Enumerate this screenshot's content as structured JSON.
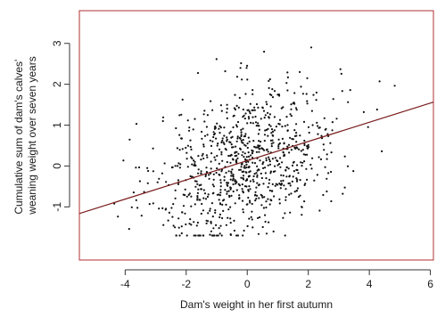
{
  "chart_data": {
    "type": "scatter",
    "xlabel": "Dam's weight in her first autumn",
    "ylabel_lines": [
      "Cumulative sum of dam's calves'",
      "weaning weight over seven years"
    ],
    "xlim": [
      -5.5,
      6.1
    ],
    "ylim": [
      -2.3,
      3.8
    ],
    "x_ticks": [
      -4,
      -2,
      0,
      2,
      4,
      6
    ],
    "y_ticks": [
      -1,
      0,
      1,
      2,
      3
    ],
    "grid": false,
    "regression_line": {
      "slope": 0.235,
      "intercept": 0.13
    },
    "series": [
      {
        "point_count": 900,
        "x_mean": 0.0,
        "x_sd": 1.5,
        "noise_sd": 0.9,
        "x_range": [
          -5.2,
          6.0
        ],
        "y_range": [
          -1.7,
          3.6
        ],
        "random_seed": 20240611
      }
    ],
    "colors": {
      "points": "#111111",
      "line": "#7a1e1e",
      "axis": "#333333",
      "frame": "#b03030"
    }
  }
}
